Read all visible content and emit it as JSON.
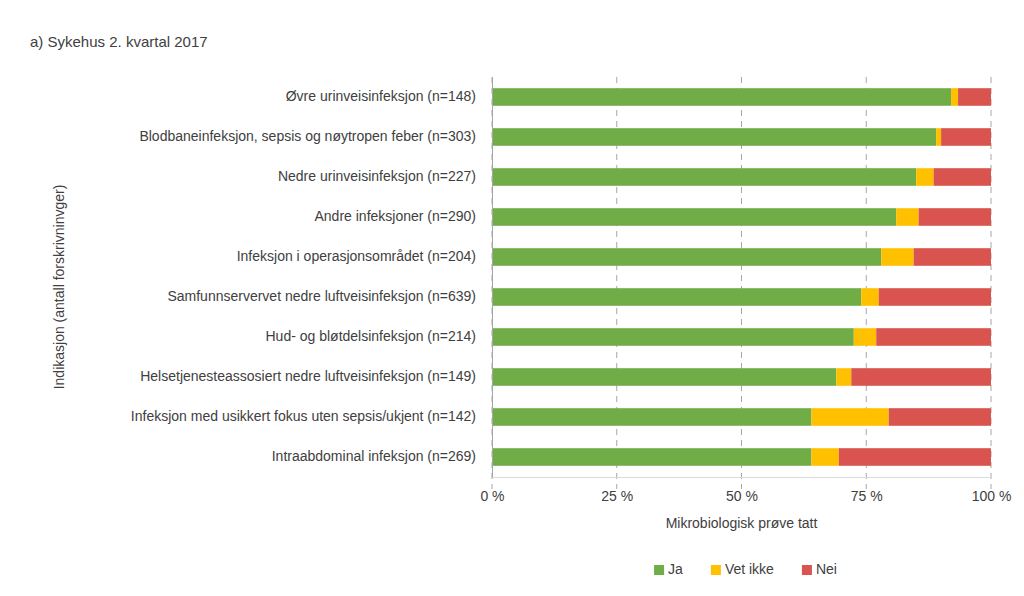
{
  "chart_data": {
    "type": "bar",
    "orientation": "horizontal",
    "stacked": true,
    "title": "a) Sykehus 2. kvartal 2017",
    "x_label": "Mikrobiologisk prøve tatt",
    "y_label": "Indikasjon (antall forskrivninvger)",
    "categories": [
      "Øvre urinveisinfeksjon (n=148)",
      "Blodbaneinfeksjon, sepsis og nøytropen feber (n=303)",
      "Nedre urinveisinfeksjon (n=227)",
      "Andre infeksjoner (n=290)",
      "Infeksjon i operasjonsområdet (n=204)",
      "Samfunnservervet nedre luftveisinfeksjon (n=639)",
      "Hud- og bløtdelsinfeksjon (n=214)",
      "Helsetjenesteassosiert nedre luftveisinfeksjon (n=149)",
      "Infeksjon med usikkert fokus uten sepsis/ukjent (n=142)",
      "Intraabdominal infeksjon (n=269)"
    ],
    "series": [
      {
        "name": "Ja",
        "color": "#70ad47",
        "values": [
          92,
          89,
          85,
          81,
          78,
          74,
          72.5,
          69,
          64,
          64
        ]
      },
      {
        "name": "Vet ikke",
        "color": "#ffc000",
        "values": [
          1.4,
          1,
          3.5,
          4.5,
          6.5,
          3.5,
          4.5,
          3,
          15.5,
          5.5
        ]
      },
      {
        "name": "Nei",
        "color": "#d9534f",
        "values": [
          6.6,
          10,
          11.5,
          14.5,
          15.5,
          22.5,
          23,
          28,
          20.5,
          30.5
        ]
      }
    ],
    "xlim": [
      0,
      100
    ],
    "xticks": [
      {
        "value": 0,
        "label": "0 %"
      },
      {
        "value": 25,
        "label": "25 %"
      },
      {
        "value": 50,
        "label": "50 %"
      },
      {
        "value": 75,
        "label": "75 %"
      },
      {
        "value": 100,
        "label": "100 %"
      }
    ],
    "grid": true,
    "legend": "bottom"
  }
}
